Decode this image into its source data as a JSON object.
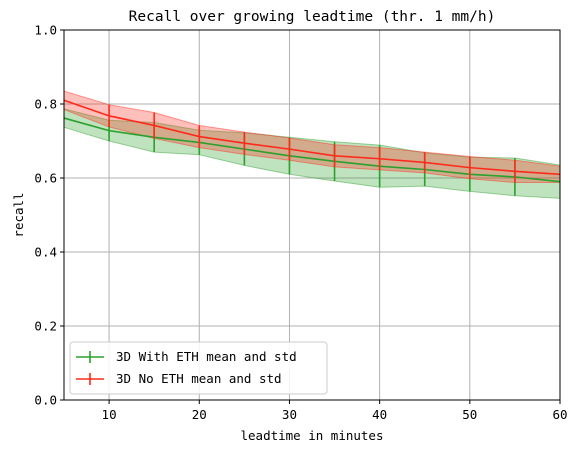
{
  "chart_data": {
    "type": "line",
    "title": "Recall over growing leadtime (thr. 1 mm/h)",
    "xlabel": "leadtime in minutes",
    "ylabel": "recall",
    "xlim": [
      5,
      60
    ],
    "ylim": [
      0.0,
      1.0
    ],
    "xticks": [
      "10",
      "20",
      "30",
      "40",
      "50",
      "60"
    ],
    "yticks": [
      "0.0",
      "0.2",
      "0.4",
      "0.6",
      "0.8",
      "1.0"
    ],
    "xtick_values": [
      10,
      20,
      30,
      40,
      50,
      60
    ],
    "ytick_values": [
      0.0,
      0.2,
      0.4,
      0.6,
      0.8,
      1.0
    ],
    "grid": true,
    "legend_position": "lower-left",
    "x": [
      5,
      10,
      15,
      20,
      25,
      30,
      35,
      40,
      45,
      50,
      55,
      60
    ],
    "series": [
      {
        "name": "3D With ETH mean and std",
        "color": "#2ca02c",
        "mean": [
          0.762,
          0.728,
          0.71,
          0.696,
          0.678,
          0.66,
          0.645,
          0.632,
          0.623,
          0.61,
          0.603,
          0.59
        ],
        "std": [
          0.025,
          0.028,
          0.04,
          0.033,
          0.044,
          0.05,
          0.053,
          0.057,
          0.045,
          0.046,
          0.051,
          0.045
        ]
      },
      {
        "name": "3D No ETH mean and std",
        "color": "#ff2a1a",
        "mean": [
          0.81,
          0.768,
          0.742,
          0.712,
          0.694,
          0.678,
          0.66,
          0.652,
          0.642,
          0.628,
          0.618,
          0.61
        ],
        "std": [
          0.025,
          0.03,
          0.035,
          0.03,
          0.03,
          0.03,
          0.03,
          0.03,
          0.028,
          0.03,
          0.03,
          0.022
        ]
      }
    ]
  }
}
